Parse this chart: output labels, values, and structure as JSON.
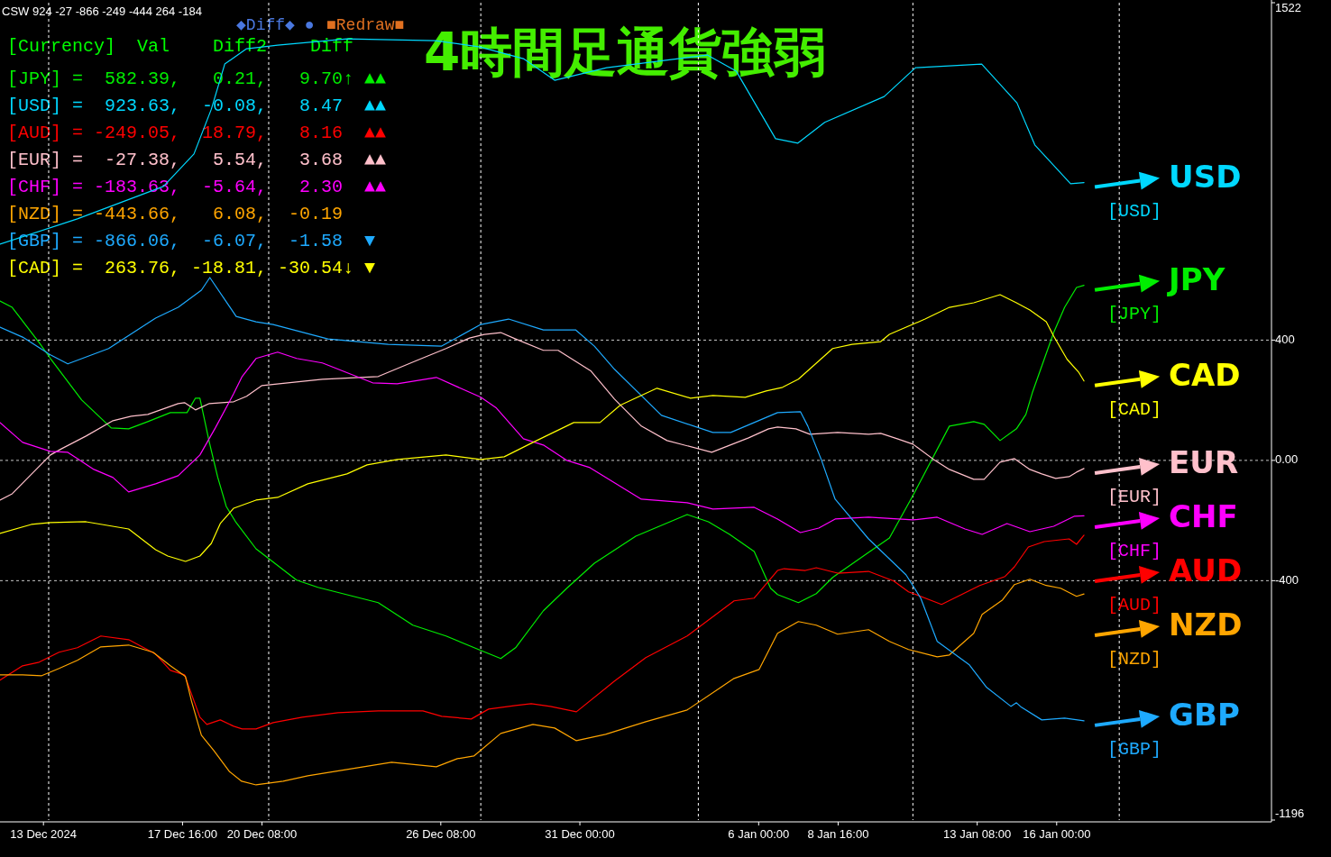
{
  "chart_data": {
    "type": "line",
    "title": "4時間足通貨強弱",
    "xlim": [
      "2024-12-11T13:00",
      "2025-01-23T05:00"
    ],
    "xticks": [
      {
        "value": "2024-12-13T00:00",
        "label": "13 Dec 2024"
      },
      {
        "value": "2024-12-17T16:00",
        "label": "17 Dec 16:00"
      },
      {
        "value": "2024-12-20T08:00",
        "label": "20 Dec 08:00"
      },
      {
        "value": "2024-12-26T08:00",
        "label": "26 Dec 08:00"
      },
      {
        "value": "2024-12-31T00:00",
        "label": "31 Dec 00:00"
      },
      {
        "value": "2025-01-06T00:00",
        "label": "6 Jan 00:00"
      },
      {
        "value": "2025-01-08T16:00",
        "label": "8 Jan 16:00"
      },
      {
        "value": "2025-01-13T08:00",
        "label": "13 Jan 08:00"
      },
      {
        "value": "2025-01-16T00:00",
        "label": "16 Jan 00:00"
      }
    ],
    "ylim": [
      -1196,
      1522
    ],
    "yticks": [
      -1196,
      -400,
      {
        "value": 0,
        "label": "0.00"
      },
      400,
      1522
    ],
    "grid": "y",
    "legend": "right",
    "ref_lines": [
      {
        "axis": "x",
        "value": "2024-12-13T04:12",
        "line_style": "dashed",
        "color": "#ffffff"
      },
      {
        "axis": "x",
        "value": "2024-12-20T13:24",
        "line_style": "dashed",
        "color": "#ffffff"
      },
      {
        "axis": "x",
        "value": "2024-12-27T16:12",
        "line_style": "dashed",
        "color": "#ffffff"
      },
      {
        "axis": "x",
        "value": "2025-01-03T23:24",
        "line_style": "dashed",
        "color": "#ffffff"
      },
      {
        "axis": "x",
        "value": "2025-01-11T04:12",
        "line_style": "dashed",
        "color": "#ffffff"
      },
      {
        "axis": "x",
        "value": "2025-01-18T02:24",
        "line_style": "dashed",
        "color": "#ffffff"
      }
    ],
    "series": [
      {
        "name": "[JPY]",
        "color": "#00ee00",
        "x": [
          "2024-12-11T13:00",
          "2024-12-11T22:48",
          "2024-12-12T20:30",
          "2024-12-13T05:36",
          "2024-12-14T06:48",
          "2024-12-15T06:36",
          "2024-12-15T20:36",
          "2024-12-16T12:00",
          "2024-12-17T06:12",
          "2024-12-17T19:36",
          "2024-12-18T02:24",
          "2024-12-18T06:00",
          "2024-12-18T13:36",
          "2024-12-18T20:24",
          "2024-12-19T03:12",
          "2024-12-19T11:12",
          "2024-12-20T03:12",
          "2024-12-21T11:54",
          "2024-12-22T05:00",
          "2024-12-24T05:36",
          "2024-12-25T09:30",
          "2024-12-26T12:12",
          "2024-12-27T16:12",
          "2024-12-28T08:18",
          "2024-12-28T20:12",
          "2024-12-29T18:36",
          "2024-12-30T13:30",
          "2024-12-31T11:42",
          "2025-01-01T21:00",
          "2025-01-03T14:24",
          "2025-01-04T07:30",
          "2025-01-05T00:36",
          "2025-01-05T20:24",
          "2025-01-06T09:36",
          "2025-01-06T15:12",
          "2025-01-07T08:00",
          "2025-01-07T22:24",
          "2025-01-08T11:36",
          "2025-01-09T16:30",
          "2025-01-10T09:18",
          "2025-01-11T04:12",
          "2025-01-12T09:36",
          "2025-01-13T05:12",
          "2025-01-13T13:36",
          "2025-01-14T02:24",
          "2025-01-14T15:36",
          "2025-01-14T23:12",
          "2025-01-15T04:24",
          "2025-01-15T21:36",
          "2025-01-16T06:24",
          "2025-01-16T16:00",
          "2025-01-16T22:00"
        ],
        "values": [
          530,
          509,
          392,
          339,
          201,
          108,
          105,
          129,
          159,
          159,
          207,
          207,
          60,
          -57,
          -153,
          -207,
          -294,
          -398,
          -422,
          -473,
          -548,
          -584,
          -632,
          -659,
          -623,
          -500,
          -425,
          -342,
          -252,
          -180,
          -204,
          -246,
          -303,
          -425,
          -446,
          -473,
          -443,
          -389,
          -306,
          -258,
          -117,
          114,
          129,
          120,
          66,
          105,
          153,
          225,
          425,
          509,
          575,
          582
        ]
      },
      {
        "name": "[USD]",
        "color": "#00d8ff",
        "x": [
          "2024-12-11T13:00",
          "2024-12-14T03:18",
          "2024-12-17T00:36",
          "2024-12-18T01:12",
          "2024-12-18T15:12",
          "2024-12-19T02:00",
          "2024-12-19T19:36",
          "2024-12-20T20:36",
          "2024-12-23T04:24",
          "2024-12-26T03:30",
          "2024-12-27T15:30",
          "2024-12-29T02:30",
          "2024-12-30T03:42",
          "2024-12-31T21:36",
          "2025-01-04T06:36",
          "2025-01-05T06:00",
          "2025-01-06T13:36",
          "2025-01-07T07:36",
          "2025-01-08T05:12",
          "2025-01-10T05:06",
          "2025-01-11T06:18",
          "2025-01-13T11:36",
          "2025-01-14T16:00",
          "2025-01-15T06:24",
          "2025-01-16T11:12",
          "2025-01-16T22:00"
        ],
        "values": [
          719,
          803,
          911,
          1019,
          1168,
          1318,
          1369,
          1381,
          1402,
          1396,
          1375,
          1336,
          1264,
          1306,
          1348,
          1294,
          1070,
          1055,
          1124,
          1210,
          1306,
          1318,
          1189,
          1049,
          920,
          924
        ]
      },
      {
        "name": "[AUD]",
        "color": "#ff0000",
        "x": [
          "2024-12-11T13:00",
          "2024-12-12T07:12",
          "2024-12-12T20:30",
          "2024-12-13T12:36",
          "2024-12-14T03:18",
          "2024-12-14T22:12",
          "2024-12-15T20:36",
          "2024-12-16T18:18",
          "2024-12-17T06:12",
          "2024-12-17T17:36",
          "2024-12-17T21:36",
          "2024-12-18T06:00",
          "2024-12-18T11:36",
          "2024-12-18T22:24",
          "2024-12-19T09:12",
          "2024-12-19T16:00",
          "2024-12-20T03:12",
          "2024-12-20T17:00",
          "2024-12-21T16:24",
          "2024-12-22T21:12",
          "2024-12-24T05:36",
          "2024-12-25T17:36",
          "2024-12-26T08:42",
          "2024-12-27T08:30",
          "2024-12-27T22:30",
          "2024-12-28T20:12",
          "2024-12-29T08:48",
          "2024-12-30T00:12",
          "2024-12-30T21:12",
          "2025-01-01T03:54",
          "2025-01-02T05:06",
          "2025-01-03T14:24",
          "2025-01-05T04:12",
          "2025-01-05T20:24",
          "2025-01-06T15:12",
          "2025-01-06T20:24",
          "2025-01-07T13:36",
          "2025-01-07T22:24",
          "2025-01-08T15:36",
          "2025-01-09T16:30",
          "2025-01-10T12:48",
          "2025-01-11T00:42",
          "2025-01-12T03:18",
          "2025-01-13T10:00",
          "2025-01-14T06:24",
          "2025-01-14T14:00",
          "2025-01-15T01:12",
          "2025-01-15T14:00",
          "2025-01-16T03:12",
          "2025-01-16T10:00",
          "2025-01-16T16:00",
          "2025-01-16T22:00"
        ],
        "values": [
          -731,
          -683,
          -671,
          -638,
          -623,
          -584,
          -596,
          -644,
          -698,
          -713,
          -758,
          -854,
          -878,
          -863,
          -884,
          -893,
          -893,
          -872,
          -854,
          -839,
          -833,
          -833,
          -851,
          -860,
          -827,
          -815,
          -809,
          -818,
          -836,
          -734,
          -656,
          -584,
          -467,
          -458,
          -366,
          -360,
          -366,
          -357,
          -375,
          -369,
          -401,
          -437,
          -479,
          -416,
          -386,
          -354,
          -288,
          -270,
          -264,
          -261,
          -279,
          -249
        ]
      },
      {
        "name": "[EUR]",
        "color": "#ffc0cb",
        "x": [
          "2024-12-11T13:00",
          "2024-12-11T22:48",
          "2024-12-13T05:36",
          "2024-12-13T14:42",
          "2024-12-14T10:18",
          "2024-12-15T08:00",
          "2024-12-15T22:42",
          "2024-12-16T12:00",
          "2024-12-17T12:30",
          "2024-12-17T17:36",
          "2024-12-18T02:24",
          "2024-12-18T13:36",
          "2024-12-19T09:12",
          "2024-12-19T19:36",
          "2024-12-20T08:00",
          "2024-12-21T04:42",
          "2024-12-22T08:36",
          "2024-12-24T05:36",
          "2024-12-25T13:06",
          "2024-12-26T12:12",
          "2024-12-27T07:06",
          "2024-12-27T19:00",
          "2024-12-28T08:18",
          "2024-12-28T20:12",
          "2024-12-29T18:36",
          "2024-12-30T06:30",
          "2024-12-31T09:00",
          "2025-01-01T03:54",
          "2025-01-02T01:30",
          "2025-01-02T22:12",
          "2025-01-04T10:12",
          "2025-01-05T15:54",
          "2025-01-06T08:00",
          "2025-01-06T15:12",
          "2025-01-07T06:00",
          "2025-01-07T17:12",
          "2025-01-08T15:36",
          "2025-01-09T16:30",
          "2025-01-10T02:18",
          "2025-01-10T15:36",
          "2025-01-11T04:12",
          "2025-01-11T21:00",
          "2025-01-12T09:36",
          "2025-01-13T05:12",
          "2025-01-13T13:36",
          "2025-01-14T02:24",
          "2025-01-14T14:00",
          "2025-01-15T02:24",
          "2025-01-15T12:00",
          "2025-01-15T23:12",
          "2025-01-16T10:00",
          "2025-01-16T16:00",
          "2025-01-16T22:00"
        ],
        "values": [
          -132,
          -111,
          18,
          39,
          81,
          132,
          147,
          153,
          189,
          192,
          168,
          189,
          195,
          213,
          249,
          258,
          270,
          279,
          333,
          372,
          407,
          419,
          425,
          404,
          366,
          366,
          297,
          204,
          114,
          66,
          27,
          75,
          105,
          111,
          105,
          87,
          93,
          87,
          90,
          72,
          54,
          3,
          -30,
          -63,
          -63,
          -6,
          6,
          -30,
          -45,
          -60,
          -54,
          -39,
          -27
        ]
      },
      {
        "name": "[CHF]",
        "color": "#ff00ff",
        "x": [
          "2024-12-11T13:00",
          "2024-12-12T07:12",
          "2024-12-13T05:36",
          "2024-12-13T19:36",
          "2024-12-14T16:36",
          "2024-12-15T08:00",
          "2024-12-15T20:36",
          "2024-12-16T18:18",
          "2024-12-17T12:30",
          "2024-12-18T06:00",
          "2024-12-18T18:24",
          "2024-12-19T09:12",
          "2024-12-19T16:00",
          "2024-12-20T03:12",
          "2024-12-20T20:36",
          "2024-12-21T11:54",
          "2024-12-22T08:36",
          "2024-12-24T01:06",
          "2024-12-24T20:54",
          "2024-12-26T04:24",
          "2024-12-27T16:12",
          "2024-12-28T04:48",
          "2024-12-29T02:30",
          "2024-12-29T18:36",
          "2024-12-30T13:30",
          "2024-12-31T08:06",
          "2025-01-02T01:30",
          "2025-01-03T14:24",
          "2025-01-04T11:06",
          "2025-01-05T20:24",
          "2025-01-06T15:12",
          "2025-01-07T09:36",
          "2025-01-08T00:24",
          "2025-01-08T13:36",
          "2025-01-09T16:30",
          "2025-01-11T04:12",
          "2025-01-11T23:48",
          "2025-01-12T22:12",
          "2025-01-13T12:00",
          "2025-01-14T08:00",
          "2025-01-15T02:24",
          "2025-01-15T21:36",
          "2025-01-16T14:00",
          "2025-01-16T22:00"
        ],
        "values": [
          126,
          60,
          30,
          27,
          -30,
          -57,
          -105,
          -78,
          -51,
          18,
          108,
          222,
          279,
          339,
          360,
          339,
          324,
          258,
          255,
          276,
          210,
          174,
          72,
          51,
          0,
          -24,
          -129,
          -141,
          -162,
          -156,
          -195,
          -240,
          -225,
          -195,
          -189,
          -198,
          -189,
          -228,
          -246,
          -210,
          -237,
          -219,
          -186,
          -184
        ]
      },
      {
        "name": "[NZD]",
        "color": "#ffa500",
        "x": [
          "2024-12-11T13:00",
          "2024-12-12T07:12",
          "2024-12-12T22:36",
          "2024-12-13T12:36",
          "2024-12-14T03:18",
          "2024-12-14T22:12",
          "2024-12-15T20:36",
          "2024-12-16T16:12",
          "2024-12-17T06:12",
          "2024-12-17T18:24",
          "2024-12-17T23:12",
          "2024-12-18T07:12",
          "2024-12-18T17:12",
          "2024-12-19T05:36",
          "2024-12-19T15:36",
          "2024-12-20T03:12",
          "2024-12-21T01:06",
          "2024-12-21T20:54",
          "2024-12-23T04:24",
          "2024-12-24T16:24",
          "2024-12-26T04:24",
          "2024-12-26T21:18",
          "2024-12-27T10:36",
          "2024-12-28T08:18",
          "2024-12-29T10:12",
          "2024-12-30T03:42",
          "2024-12-30T21:12",
          "2024-12-31T20:42",
          "2025-01-02T05:06",
          "2025-01-03T14:24",
          "2025-01-05T04:12",
          "2025-01-06T00:24",
          "2025-01-06T15:12",
          "2025-01-07T08:00",
          "2025-01-07T22:24",
          "2025-01-08T15:36",
          "2025-01-09T16:30",
          "2025-01-10T09:18",
          "2025-01-11T00:42",
          "2025-01-11T23:48",
          "2025-01-12T09:36",
          "2025-01-13T05:12",
          "2025-01-13T12:00",
          "2025-01-14T04:24",
          "2025-01-14T14:00",
          "2025-01-15T02:24",
          "2025-01-15T15:36",
          "2025-01-16T03:12",
          "2025-01-16T16:00",
          "2025-01-16T22:00"
        ],
        "values": [
          -713,
          -713,
          -716,
          -692,
          -665,
          -620,
          -614,
          -638,
          -683,
          -719,
          -800,
          -914,
          -965,
          -1034,
          -1067,
          -1079,
          -1067,
          -1049,
          -1028,
          -1004,
          -1019,
          -992,
          -983,
          -908,
          -878,
          -890,
          -932,
          -911,
          -869,
          -830,
          -725,
          -695,
          -575,
          -536,
          -548,
          -578,
          -563,
          -602,
          -629,
          -653,
          -647,
          -575,
          -512,
          -464,
          -413,
          -395,
          -416,
          -425,
          -452,
          -444
        ]
      },
      {
        "name": "[GBP]",
        "color": "#1eaaff",
        "x": [
          "2024-12-11T13:00",
          "2024-12-12T07:12",
          "2024-12-13T05:36",
          "2024-12-13T19:36",
          "2024-12-15T04:30",
          "2024-12-16T18:18",
          "2024-12-17T12:30",
          "2024-12-18T07:12",
          "2024-12-18T14:00",
          "2024-12-19T11:12",
          "2024-12-20T03:12",
          "2024-12-20T17:00",
          "2024-12-22T13:06",
          "2024-12-24T13:42",
          "2024-12-26T08:42",
          "2024-12-27T16:12",
          "2024-12-28T14:36",
          "2024-12-29T18:36",
          "2024-12-30T20:30",
          "2024-12-31T11:42",
          "2025-01-01T03:54",
          "2025-01-02T17:42",
          "2025-01-04T11:06",
          "2025-01-05T01:30",
          "2025-01-06T15:12",
          "2025-01-07T09:36",
          "2025-01-07T15:36",
          "2025-01-08T02:24",
          "2025-01-08T13:36",
          "2025-01-09T16:30",
          "2025-01-10T22:36",
          "2025-01-11T10:30",
          "2025-01-11T23:48",
          "2025-01-13T01:42",
          "2025-01-13T15:36",
          "2025-01-14T11:12",
          "2025-01-14T15:36",
          "2025-01-14T19:36",
          "2025-01-15T12:00",
          "2025-01-16T06:24",
          "2025-01-16T22:00"
        ],
        "values": [
          443,
          410,
          351,
          321,
          372,
          473,
          509,
          566,
          608,
          479,
          461,
          452,
          404,
          386,
          380,
          452,
          470,
          434,
          434,
          380,
          303,
          150,
          93,
          93,
          159,
          162,
          114,
          3,
          -129,
          -261,
          -380,
          -458,
          -602,
          -680,
          -755,
          -818,
          -806,
          -821,
          -863,
          -857,
          -866
        ]
      },
      {
        "name": "[CAD]",
        "color": "#ffff00",
        "x": [
          "2024-12-11T13:00",
          "2024-12-12T14:12",
          "2024-12-13T05:36",
          "2024-12-14T10:18",
          "2024-12-15T20:36",
          "2024-12-16T18:18",
          "2024-12-17T04:06",
          "2024-12-17T18:24",
          "2024-12-18T06:00",
          "2024-12-18T15:12",
          "2024-12-18T22:24",
          "2024-12-19T09:12",
          "2024-12-20T03:12",
          "2024-12-20T20:36",
          "2024-12-21T20:54",
          "2024-12-23T04:24",
          "2024-12-23T20:36",
          "2024-12-24T20:54",
          "2024-12-26T12:12",
          "2024-12-27T16:12",
          "2024-12-28T11:06",
          "2024-12-29T08:48",
          "2024-12-29T20:42",
          "2024-12-30T19:06",
          "2024-12-31T16:12",
          "2025-01-01T08:24",
          "2025-01-02T14:06",
          "2025-01-03T17:06",
          "2025-01-04T11:06",
          "2025-01-05T13:12",
          "2025-01-06T06:00",
          "2025-01-06T19:12",
          "2025-01-07T08:00",
          "2025-01-08T11:36",
          "2025-01-09T03:12",
          "2025-01-10T02:18",
          "2025-01-10T09:18",
          "2025-01-11T14:00",
          "2025-01-12T09:36",
          "2025-01-13T05:12",
          "2025-01-14T02:24",
          "2025-01-14T15:36",
          "2025-01-15T02:24",
          "2025-01-15T15:36",
          "2025-01-15T21:36",
          "2025-01-16T08:24",
          "2025-01-16T17:36",
          "2025-01-16T22:00"
        ],
        "values": [
          -243,
          -213,
          -207,
          -204,
          -228,
          -297,
          -318,
          -336,
          -318,
          -276,
          -210,
          -159,
          -132,
          -123,
          -78,
          -45,
          -15,
          3,
          18,
          3,
          12,
          57,
          81,
          126,
          126,
          183,
          240,
          207,
          216,
          210,
          231,
          243,
          270,
          372,
          386,
          395,
          419,
          470,
          509,
          524,
          551,
          524,
          500,
          461,
          413,
          336,
          294,
          264
        ]
      }
    ],
    "annotations": [
      "CSW 924 -27 -866 -249 -444 264 -184",
      "[Currency]  Val    Diff2    Diff",
      "◆Diff◆ ●",
      "■Redraw■",
      "[JPY] =  582.39,   0.21,   9.70↑ ▲▲",
      "[USD] =  923.63,  -0.08,   8.47  ▲▲",
      "[AUD] = -249.05,  18.79,   8.16  ▲▲",
      "[EUR] =  -27.38,   5.54,   3.68  ▲▲",
      "[CHF] = -183.63,  -5.64,   2.30  ▲▲",
      "[NZD] = -443.66,   6.08,  -0.19",
      "[GBP] = -866.06,  -6.07,  -1.58  ▼",
      "[CAD] =  263.76, -18.81, -30.54↓ ▼",
      "JPY",
      "USD",
      "AUD",
      "EUR",
      "CHF",
      "NZD",
      "GBP",
      "CAD"
    ]
  }
}
